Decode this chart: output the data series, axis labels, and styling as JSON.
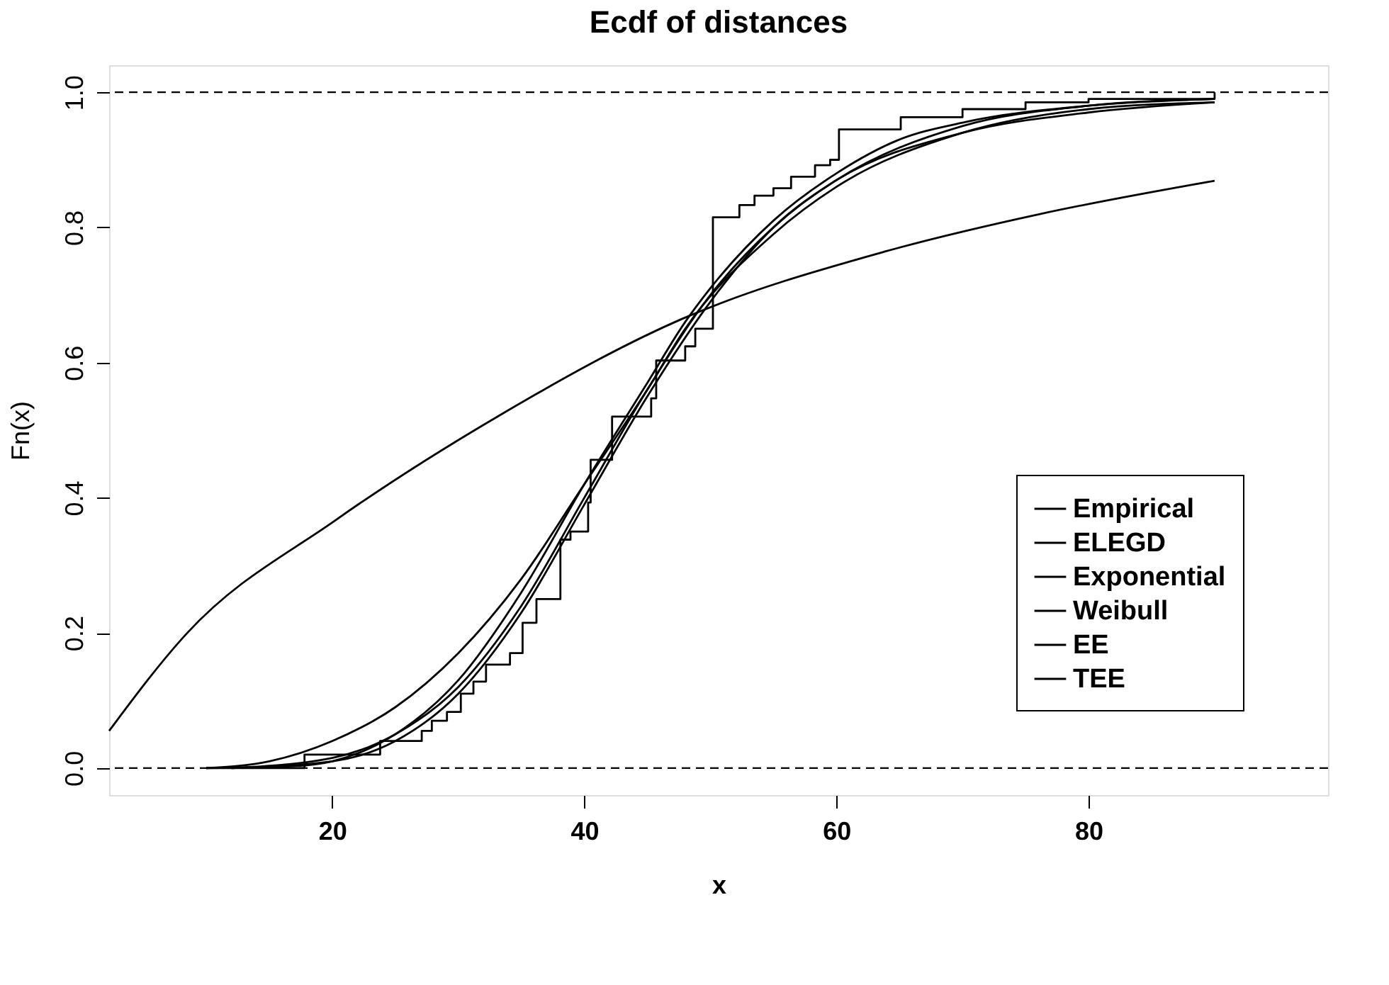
{
  "chart_data": {
    "type": "line",
    "title": "Ecdf of distances",
    "xlabel": "x",
    "ylabel": "Fn(x)",
    "xlim": [
      2.3,
      99
    ],
    "ylim": [
      -0.04,
      1.04
    ],
    "xticks": [
      20,
      40,
      60,
      80
    ],
    "yticks": [
      {
        "value": 0,
        "label": "0.0"
      },
      {
        "value": 0.2,
        "label": "0.2"
      },
      {
        "value": 0.4,
        "label": "0.4"
      },
      {
        "value": 0.6,
        "label": "0.6"
      },
      {
        "value": 0.8,
        "label": "0.8"
      },
      {
        "value": 1,
        "label": "1.0"
      }
    ],
    "grid": false,
    "legend": "bottom right",
    "line_style": "solid",
    "marker": "none",
    "ref_lines": [
      {
        "axis": "y",
        "value": 0,
        "line_style": "dashed",
        "color": "#000000"
      },
      {
        "axis": "y",
        "value": 1,
        "line_style": "dashed",
        "color": "#000000"
      }
    ],
    "series": [
      {
        "name": "Empirical",
        "type": "step",
        "color": "#000000",
        "x": [
          10,
          17.8,
          23.8,
          27.1,
          27.9,
          29.1,
          30.2,
          31.2,
          32.2,
          34.1,
          35.1,
          36.2,
          38.1,
          38.9,
          40.3,
          40.5,
          42.2,
          45.3,
          45.7,
          48.0,
          48.8,
          50.2,
          52.3,
          53.5,
          55.0,
          56.4,
          58.3,
          59.5,
          60.2,
          65.1,
          70,
          75,
          80,
          90
        ],
        "values": [
          0,
          0.02,
          0.04,
          0.055,
          0.07,
          0.083,
          0.11,
          0.128,
          0.153,
          0.17,
          0.215,
          0.25,
          0.338,
          0.35,
          0.393,
          0.456,
          0.52,
          0.547,
          0.603,
          0.624,
          0.65,
          0.815,
          0.833,
          0.847,
          0.858,
          0.875,
          0.892,
          0.9,
          0.945,
          0.963,
          0.975,
          0.985,
          0.99,
          1.0
        ]
      },
      {
        "name": "ELEGD",
        "type": "line",
        "color": "#000000",
        "x": [
          10,
          15,
          20,
          25,
          30,
          35,
          40,
          45,
          48,
          55,
          60,
          70,
          80,
          90
        ],
        "values": [
          0,
          0.01,
          0.04,
          0.09,
          0.17,
          0.28,
          0.42,
          0.56,
          0.65,
          0.79,
          0.86,
          0.94,
          0.975,
          0.985
        ]
      },
      {
        "name": "Exponential",
        "type": "line",
        "color": "#000000",
        "x": [
          2.3,
          8.5,
          20.2,
          33.1,
          47.8,
          63.8,
          76.2,
          90
        ],
        "values": [
          0.055,
          0.2,
          0.366,
          0.52,
          0.665,
          0.764,
          0.82,
          0.869
        ]
      },
      {
        "name": "Weibull",
        "type": "line",
        "color": "#000000",
        "x": [
          10,
          17,
          20,
          25,
          30,
          35,
          40,
          45,
          48,
          50,
          55,
          60,
          65,
          70,
          80,
          90
        ],
        "values": [
          0,
          0.003,
          0.01,
          0.05,
          0.13,
          0.26,
          0.42,
          0.57,
          0.66,
          0.71,
          0.81,
          0.88,
          0.93,
          0.955,
          0.98,
          0.99
        ]
      },
      {
        "name": "EE",
        "type": "line",
        "color": "#000000",
        "x": [
          12,
          20,
          25,
          30,
          35,
          40,
          45,
          50,
          55,
          60,
          70,
          80,
          90
        ],
        "values": [
          0,
          0.01,
          0.04,
          0.11,
          0.23,
          0.39,
          0.55,
          0.69,
          0.8,
          0.87,
          0.95,
          0.98,
          0.99
        ]
      },
      {
        "name": "TEE",
        "type": "line",
        "color": "#000000",
        "x": [
          12,
          20,
          25,
          30,
          35,
          40,
          45,
          50,
          55,
          60,
          70,
          80,
          90
        ],
        "values": [
          0,
          0.015,
          0.05,
          0.12,
          0.24,
          0.4,
          0.56,
          0.7,
          0.8,
          0.87,
          0.94,
          0.97,
          0.985
        ]
      }
    ]
  }
}
